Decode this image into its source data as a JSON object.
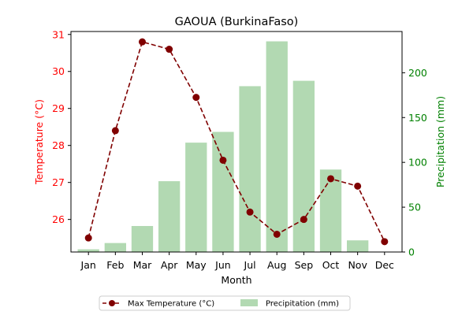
{
  "chart_data": {
    "type": "bar+line",
    "title": "GAOUA (BurkinaFaso)",
    "xlabel": "Month",
    "categories": [
      "Jan",
      "Feb",
      "Mar",
      "Apr",
      "May",
      "Jun",
      "Jul",
      "Aug",
      "Sep",
      "Oct",
      "Nov",
      "Dec"
    ],
    "left_axis": {
      "label": "Temperature (°C)",
      "color": "#ff0000",
      "ylim": [
        25.12,
        31.08
      ],
      "ticks": [
        "26",
        "27",
        "28",
        "29",
        "30",
        "31"
      ]
    },
    "right_axis": {
      "label": "Precipitation (mm)",
      "color": "#008000",
      "ylim": [
        0,
        246
      ],
      "ticks": [
        "0",
        "50",
        "100",
        "150",
        "200"
      ]
    },
    "series": [
      {
        "name": "Max Temperature (°C)",
        "kind": "line",
        "axis": "left",
        "color": "#800000",
        "values": [
          25.5,
          28.4,
          30.8,
          30.6,
          29.3,
          27.6,
          26.2,
          25.6,
          26.0,
          27.1,
          26.9,
          25.4
        ]
      },
      {
        "name": "Precipitation (mm)",
        "kind": "bar",
        "axis": "right",
        "color": "#b2d9b2",
        "values": [
          3,
          10,
          29,
          79,
          122,
          134,
          185,
          235,
          191,
          92,
          13,
          0
        ]
      }
    ],
    "legend": "bottom-center",
    "grid": false
  }
}
